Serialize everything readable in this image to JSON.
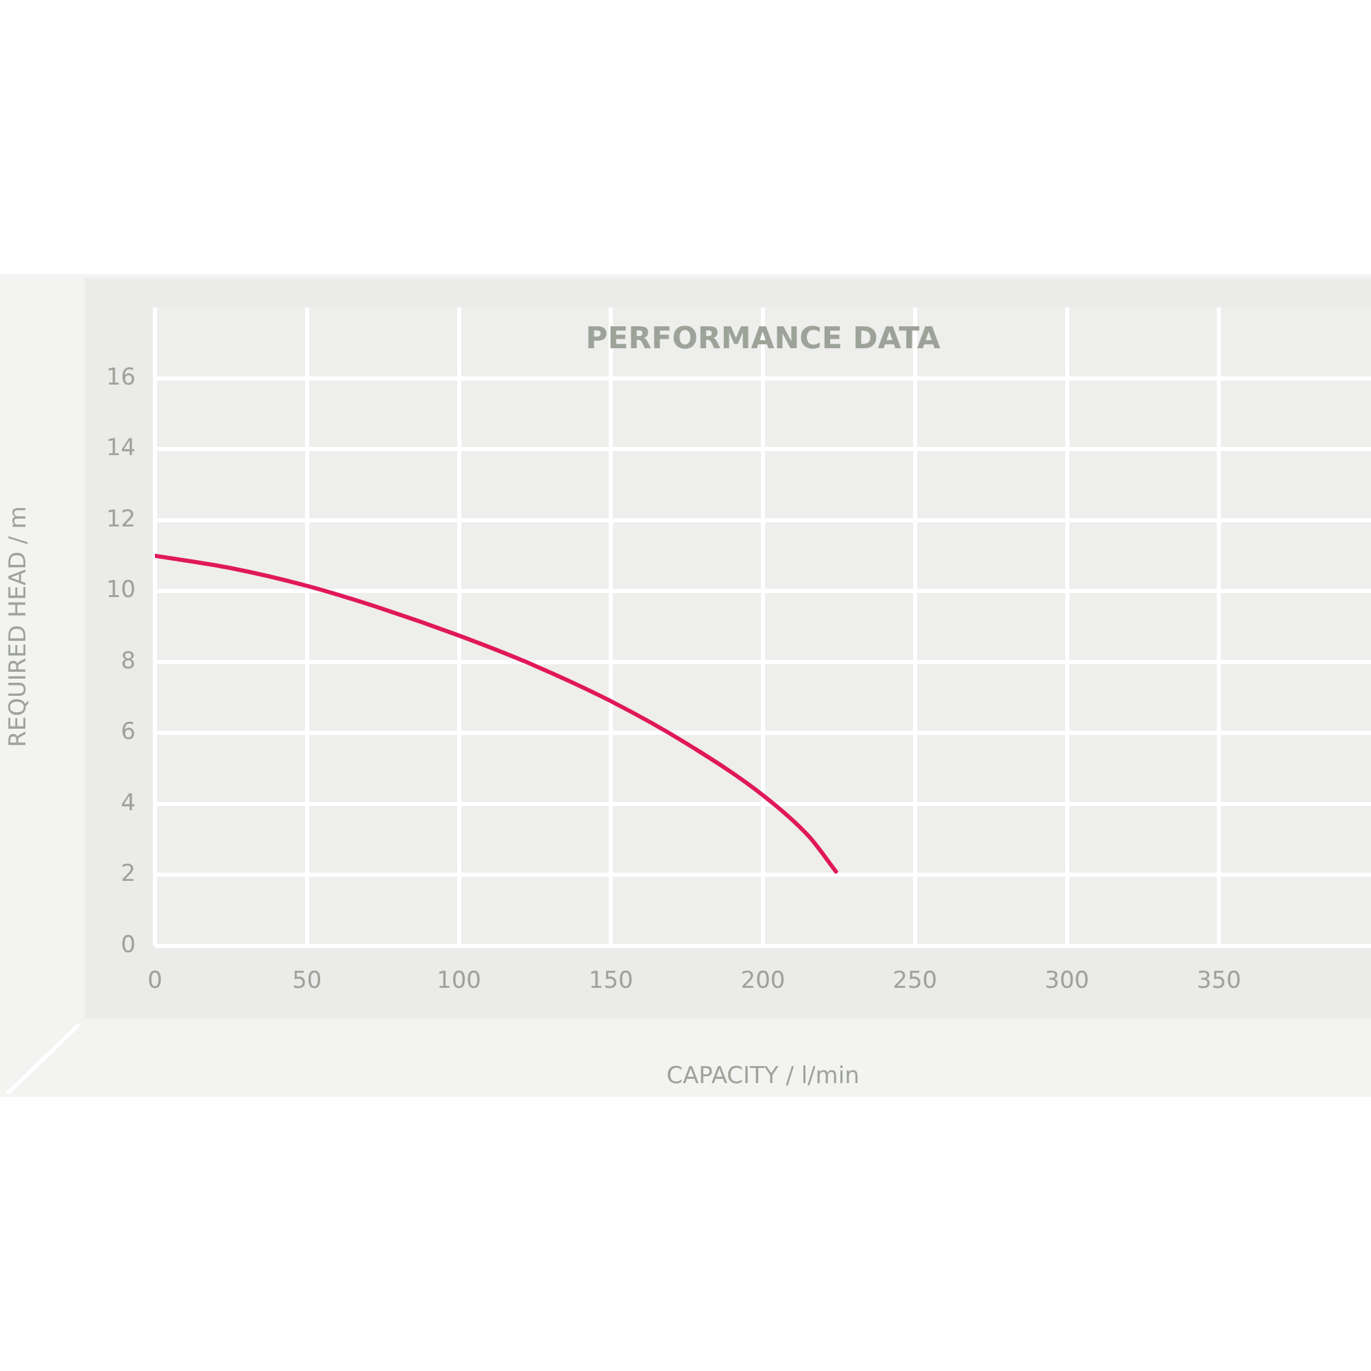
{
  "chart_data": {
    "type": "line",
    "title": "PERFORMANCE DATA",
    "xlabel": "CAPACITY / l/min",
    "ylabel": "REQUIRED HEAD / m",
    "series": [
      {
        "color": "#e0185a",
        "x": [
          0,
          25,
          50,
          75,
          100,
          125,
          150,
          175,
          200,
          215,
          224
        ],
        "values": [
          11,
          10.65,
          10.15,
          9.5,
          8.75,
          7.9,
          6.9,
          5.7,
          4.25,
          3.1,
          2.1
        ]
      }
    ],
    "xlim": [
      0,
      400
    ],
    "xticks": [
      0,
      50,
      100,
      150,
      200,
      250,
      300,
      350
    ],
    "ylim": [
      0,
      18
    ],
    "yticks": [
      0,
      2,
      4,
      6,
      8,
      10,
      12,
      14,
      16
    ],
    "grid": true,
    "legend": false,
    "marker": "none",
    "line_style": "solid"
  }
}
